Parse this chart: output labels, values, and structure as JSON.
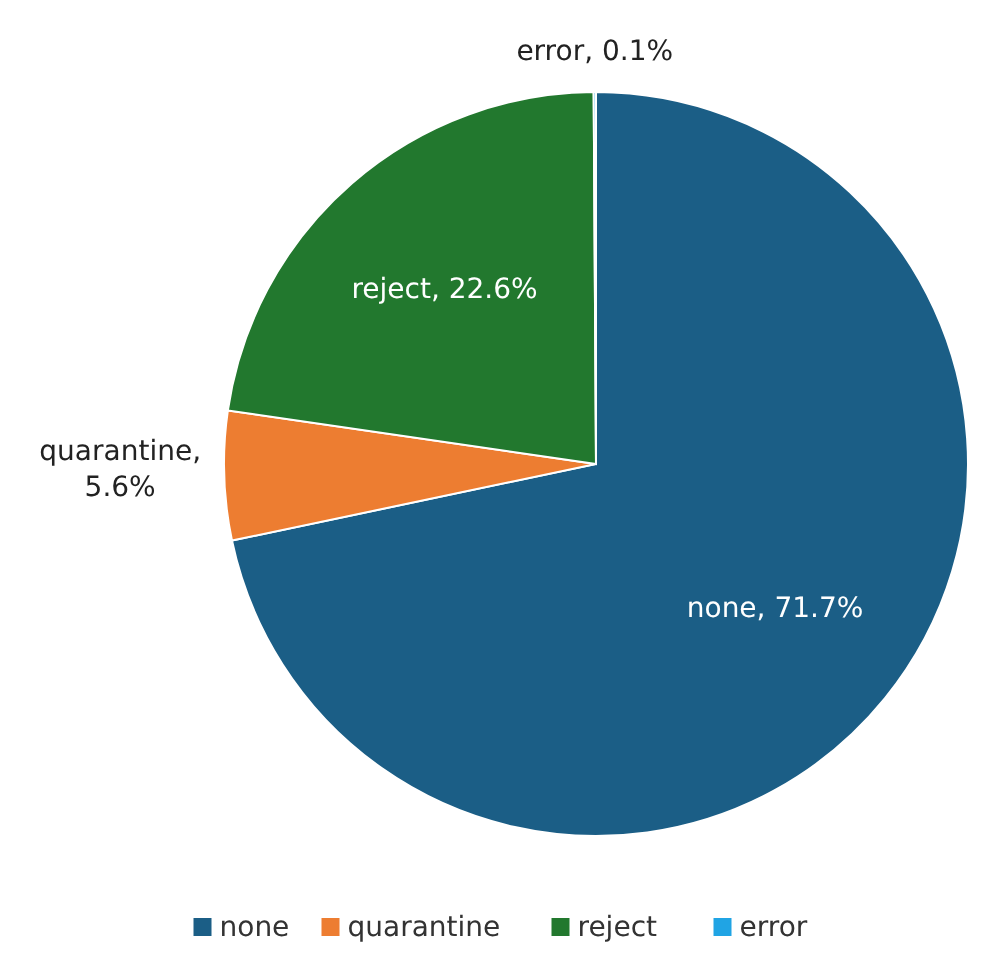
{
  "chart_data": {
    "type": "pie",
    "categories": [
      "none",
      "quarantine",
      "reject",
      "error"
    ],
    "values": [
      71.7,
      5.6,
      22.6,
      0.1
    ],
    "value_labels": [
      "none, 71.7%",
      "quarantine, 5.6%",
      "reject, 22.6%",
      "error, 0.1%"
    ],
    "colors": [
      "#1b5e86",
      "#ed7d31",
      "#22782e",
      "#20a4e4"
    ],
    "legend": "bottom"
  }
}
